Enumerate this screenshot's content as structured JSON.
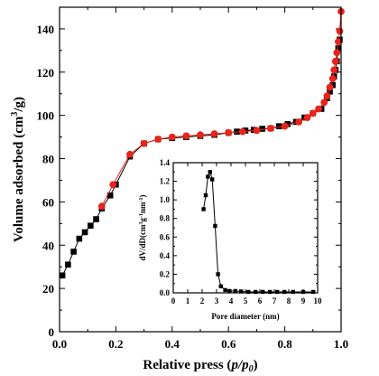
{
  "chart_data": [
    {
      "type": "line",
      "xlabel_parts": [
        "Relative press (",
        "p/p",
        "0",
        ")"
      ],
      "ylabel_parts": [
        "Volume adsorbed (cm",
        "3",
        "/g)"
      ],
      "xlim": [
        0,
        1.0
      ],
      "ylim": [
        0,
        150
      ],
      "xticks": [
        "0.0",
        "0.2",
        "0.4",
        "0.6",
        "0.8",
        "1.0"
      ],
      "yticks": [
        "0",
        "20",
        "40",
        "60",
        "80",
        "100",
        "120",
        "140"
      ],
      "xtick_values": [
        0.0,
        0.2,
        0.4,
        0.6,
        0.8,
        1.0
      ],
      "ytick_values": [
        0,
        20,
        40,
        60,
        80,
        100,
        120,
        140
      ],
      "grid": false,
      "series": [
        {
          "marker": "square",
          "color": "#000000",
          "x": [
            0.01,
            0.03,
            0.05,
            0.07,
            0.09,
            0.11,
            0.13,
            0.15,
            0.18,
            0.2,
            0.25,
            0.3,
            0.35,
            0.4,
            0.45,
            0.5,
            0.55,
            0.6,
            0.63,
            0.66,
            0.69,
            0.72,
            0.75,
            0.78,
            0.81,
            0.84,
            0.87,
            0.9,
            0.93,
            0.95,
            0.96,
            0.97,
            0.975,
            0.98,
            0.985,
            0.99,
            0.995
          ],
          "y": [
            26,
            31,
            37,
            43,
            46,
            49,
            52,
            57,
            63,
            68,
            81,
            87,
            89,
            89.5,
            90,
            90.5,
            91,
            92,
            92.5,
            93,
            93.3,
            93.8,
            94,
            95,
            96,
            97,
            99,
            101,
            103,
            108,
            111,
            114,
            118,
            121,
            125,
            131,
            135
          ]
        },
        {
          "marker": "circle",
          "color": "#e8241c",
          "x": [
            0.15,
            0.19,
            0.25,
            0.3,
            0.35,
            0.4,
            0.45,
            0.5,
            0.55,
            0.6,
            0.65,
            0.7,
            0.75,
            0.8,
            0.85,
            0.88,
            0.9,
            0.92,
            0.94,
            0.95,
            0.96,
            0.97,
            0.975,
            0.98,
            0.985,
            0.99,
            0.995,
            1.0
          ],
          "y": [
            58,
            68,
            82,
            87,
            89,
            90,
            90.5,
            91,
            91.5,
            92,
            92.5,
            93,
            94,
            95,
            97,
            99,
            101,
            103,
            106,
            109,
            113,
            117,
            121,
            125,
            129,
            134,
            139,
            148
          ]
        }
      ]
    },
    {
      "type": "line",
      "xlabel": "Pore diameter (nm)",
      "ylabel_parts": [
        "dV/dD(cm",
        "3",
        "g",
        "-1",
        "nm",
        "-1",
        ")"
      ],
      "xlim": [
        0,
        10
      ],
      "ylim": [
        0,
        1.4
      ],
      "xticks": [
        "0",
        "1",
        "2",
        "3",
        "4",
        "5",
        "6",
        "7",
        "8",
        "9",
        "10"
      ],
      "yticks": [
        "0.0",
        "0.2",
        "0.4",
        "0.6",
        "0.8",
        "1.0",
        "1.2",
        "1.4"
      ],
      "xtick_values": [
        0,
        1,
        2,
        3,
        4,
        5,
        6,
        7,
        8,
        9,
        10
      ],
      "ytick_values": [
        0.0,
        0.2,
        0.4,
        0.6,
        0.8,
        1.0,
        1.2,
        1.4
      ],
      "grid": false,
      "series": [
        {
          "marker": "square",
          "color": "#000000",
          "x": [
            2.1,
            2.25,
            2.4,
            2.55,
            2.7,
            2.9,
            3.1,
            3.3,
            3.6,
            3.9,
            4.3,
            4.7,
            5.2,
            5.7,
            6.2,
            6.7,
            7.2,
            7.7,
            8.3,
            9.0,
            9.7
          ],
          "y": [
            0.9,
            1.05,
            1.25,
            1.3,
            1.22,
            0.72,
            0.2,
            0.07,
            0.03,
            0.02,
            0.02,
            0.015,
            0.01,
            0.01,
            0.01,
            0.01,
            0.01,
            0.01,
            0.01,
            0.01,
            0.01
          ]
        }
      ]
    }
  ]
}
